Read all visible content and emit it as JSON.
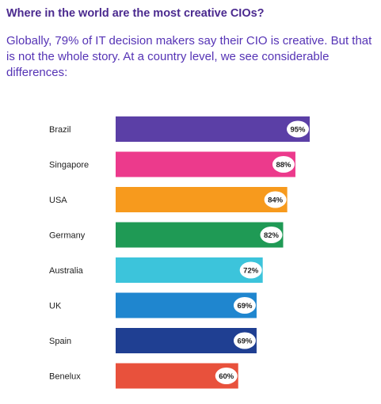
{
  "chart_data": {
    "type": "bar",
    "orientation": "horizontal",
    "title": "Where in the world are the most creative CIOs?",
    "subtitle": "Globally, 79% of IT decision makers say their CIO is creative. But that is not the whole story. At a country level, we see considerable differences:",
    "categories": [
      "Brazil",
      "Singapore",
      "USA",
      "Germany",
      "Australia",
      "UK",
      "Spain",
      "Benelux"
    ],
    "values": [
      95,
      88,
      84,
      82,
      72,
      69,
      69,
      60
    ],
    "value_labels": [
      "95%",
      "88%",
      "84%",
      "82%",
      "72%",
      "69%",
      "69%",
      "60%"
    ],
    "unit": "%",
    "colors": [
      "#5b3fa6",
      "#ec3a8c",
      "#f79a1d",
      "#1f9a55",
      "#3cc4db",
      "#1f86cf",
      "#1f3f92",
      "#e8513c"
    ],
    "grid": false,
    "legend": "none"
  }
}
